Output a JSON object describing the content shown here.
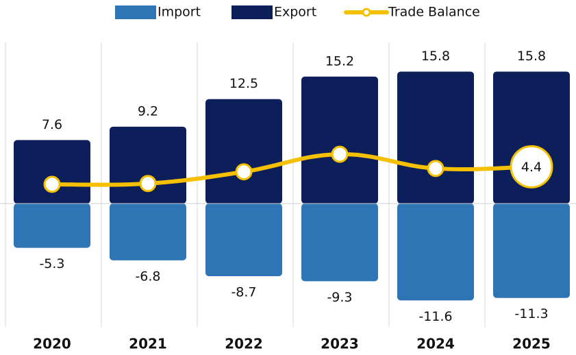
{
  "chart_data": {
    "type": "bar-line",
    "categories": [
      "2020",
      "2021",
      "2022",
      "2023",
      "2024",
      "2025"
    ],
    "series": [
      {
        "name": "Import",
        "color": "#2e75b6",
        "values": [
          -5.3,
          -6.8,
          -8.7,
          -9.3,
          -11.6,
          -11.3
        ]
      },
      {
        "name": "Export",
        "color": "#0c1f5a",
        "values": [
          7.6,
          9.2,
          12.5,
          15.2,
          15.8,
          15.8
        ]
      },
      {
        "name": "Trade Balance",
        "color": "#f5c000",
        "values": [
          2.3,
          2.4,
          3.8,
          5.9,
          4.2,
          4.4
        ]
      }
    ],
    "ylim": [
      -16,
      16
    ],
    "grid": true
  }
}
